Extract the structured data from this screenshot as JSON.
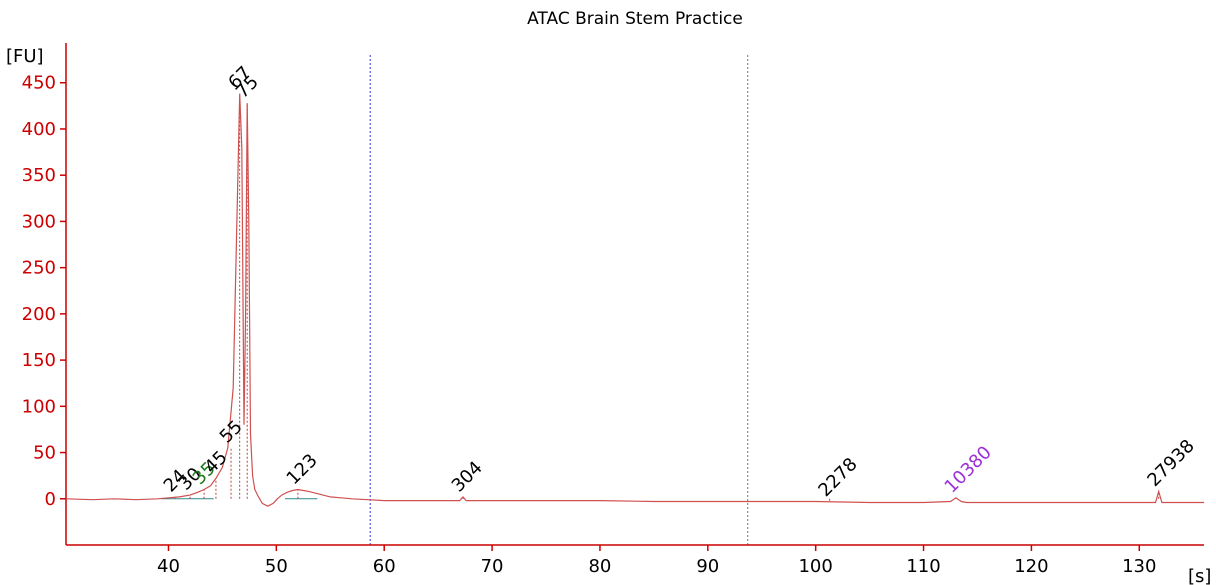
{
  "chart_data": {
    "type": "line",
    "title": "ATAC Brain Stem Practice",
    "ylabel": "[FU]",
    "xlabel": "[s]",
    "xlim": [
      30.5,
      136
    ],
    "ylim": [
      -50,
      480
    ],
    "x_ticks": [
      40,
      50,
      60,
      70,
      80,
      90,
      100,
      110,
      120,
      130
    ],
    "y_ticks": [
      0,
      50,
      100,
      150,
      200,
      250,
      300,
      350,
      400,
      450
    ],
    "grid": false,
    "colors": {
      "axes": "#cc0000",
      "trace": "#d05050",
      "marker_line": "#c04040",
      "region_line": "#2e8b8b",
      "label_default": "#000000",
      "label_lower_marker": "#1a7a1a",
      "label_upper_marker": "#9b30d9",
      "dotted_line_1": "#3333cc",
      "dotted_line_2": "#777777"
    },
    "series": [
      {
        "x": [
          30.5,
          33,
          35,
          37,
          39,
          40,
          41,
          42,
          42.7,
          43.3,
          43.9,
          44.4,
          45,
          45.5,
          46,
          46.4,
          46.6,
          46.8,
          47,
          47.15,
          47.3,
          47.45,
          47.6,
          47.8,
          48,
          48.3,
          48.7,
          49.2,
          49.7,
          50.1,
          50.5,
          51,
          51.5,
          52,
          52.5,
          53,
          54,
          55,
          56,
          57,
          58.5,
          60,
          65,
          67,
          67.3,
          67.6,
          70,
          80,
          85,
          90,
          95,
          100,
          105,
          110,
          112.5,
          113,
          113.5,
          114,
          116,
          120,
          125,
          130,
          131.5,
          131.8,
          132.1,
          132.5,
          134,
          136
        ],
        "y": [
          0,
          -1,
          0,
          -1,
          0,
          1,
          2,
          4,
          7,
          10,
          14,
          22,
          34,
          55,
          120,
          330,
          438,
          380,
          80,
          200,
          428,
          300,
          70,
          25,
          10,
          3,
          -5,
          -8,
          -5,
          0,
          4,
          7,
          9,
          10,
          9,
          8,
          5,
          2,
          1,
          0,
          -1,
          -2,
          -2,
          -2,
          2,
          -2,
          -2,
          -2,
          -3,
          -3,
          -3,
          -3,
          -4,
          -4,
          -3,
          1,
          -3,
          -4,
          -4,
          -4,
          -4,
          -4,
          -4,
          8,
          -4,
          -4,
          -4,
          -4
        ]
      }
    ],
    "peaks": [
      {
        "label": "24",
        "x": 40.6,
        "y": 2,
        "color_key": "label_default"
      },
      {
        "label": "30",
        "x": 42.0,
        "y": 4,
        "color_key": "label_default"
      },
      {
        "label": "35",
        "x": 43.3,
        "y": 10,
        "color_key": "label_lower_marker"
      },
      {
        "label": "45",
        "x": 44.4,
        "y": 22,
        "color_key": "label_default"
      },
      {
        "label": "55",
        "x": 45.8,
        "y": 55,
        "color_key": "label_default"
      },
      {
        "label": "67",
        "x": 46.6,
        "y": 438,
        "color_key": "label_default"
      },
      {
        "label": "75",
        "x": 47.3,
        "y": 428,
        "color_key": "label_default"
      },
      {
        "label": "123",
        "x": 52.0,
        "y": 10,
        "color_key": "label_default"
      },
      {
        "label": "304",
        "x": 67.3,
        "y": 2,
        "color_key": "label_default"
      },
      {
        "label": "2278",
        "x": 101.3,
        "y": -3,
        "color_key": "label_default"
      },
      {
        "label": "10380",
        "x": 113.0,
        "y": 1,
        "color_key": "label_upper_marker"
      },
      {
        "label": "27938",
        "x": 131.8,
        "y": 8,
        "color_key": "label_default"
      }
    ],
    "dotted_verticals": [
      {
        "x": 58.7,
        "color_key": "dotted_line_1"
      },
      {
        "x": 93.7,
        "color_key": "dotted_line_2"
      }
    ]
  }
}
